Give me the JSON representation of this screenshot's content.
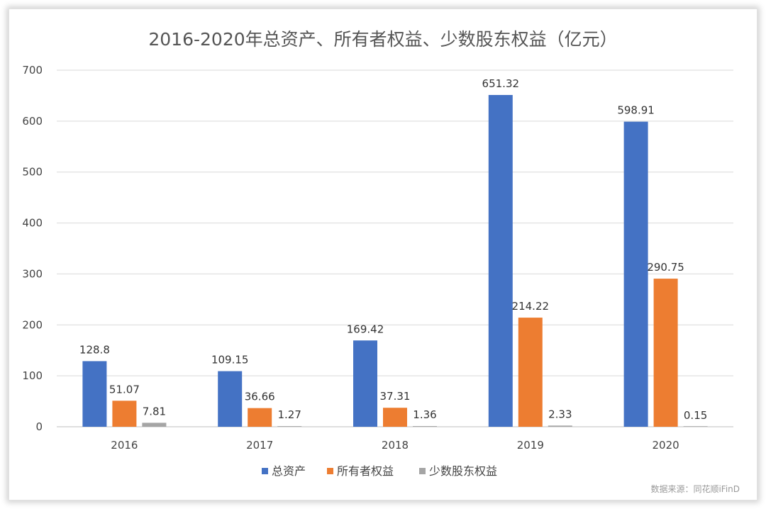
{
  "chart_data": {
    "type": "bar",
    "title": "2016-2020年总资产、所有者权益、少数股东权益（亿元）",
    "categories": [
      "2016",
      "2017",
      "2018",
      "2019",
      "2020"
    ],
    "series": [
      {
        "name": "总资产",
        "color": "#4472C4",
        "values": [
          128.8,
          109.15,
          169.42,
          651.32,
          598.91
        ]
      },
      {
        "name": "所有者权益",
        "color": "#ED7D31",
        "values": [
          51.07,
          36.66,
          37.31,
          214.22,
          290.75
        ]
      },
      {
        "name": "少数股东权益",
        "color": "#A5A5A5",
        "values": [
          7.81,
          1.27,
          1.36,
          2.33,
          0.15
        ]
      }
    ],
    "ylim": [
      0,
      700
    ],
    "yticks": [
      0,
      100,
      200,
      300,
      400,
      500,
      600,
      700
    ],
    "grid": true,
    "legend": "bottom",
    "source": "数据来源：同花顺iFinD"
  }
}
